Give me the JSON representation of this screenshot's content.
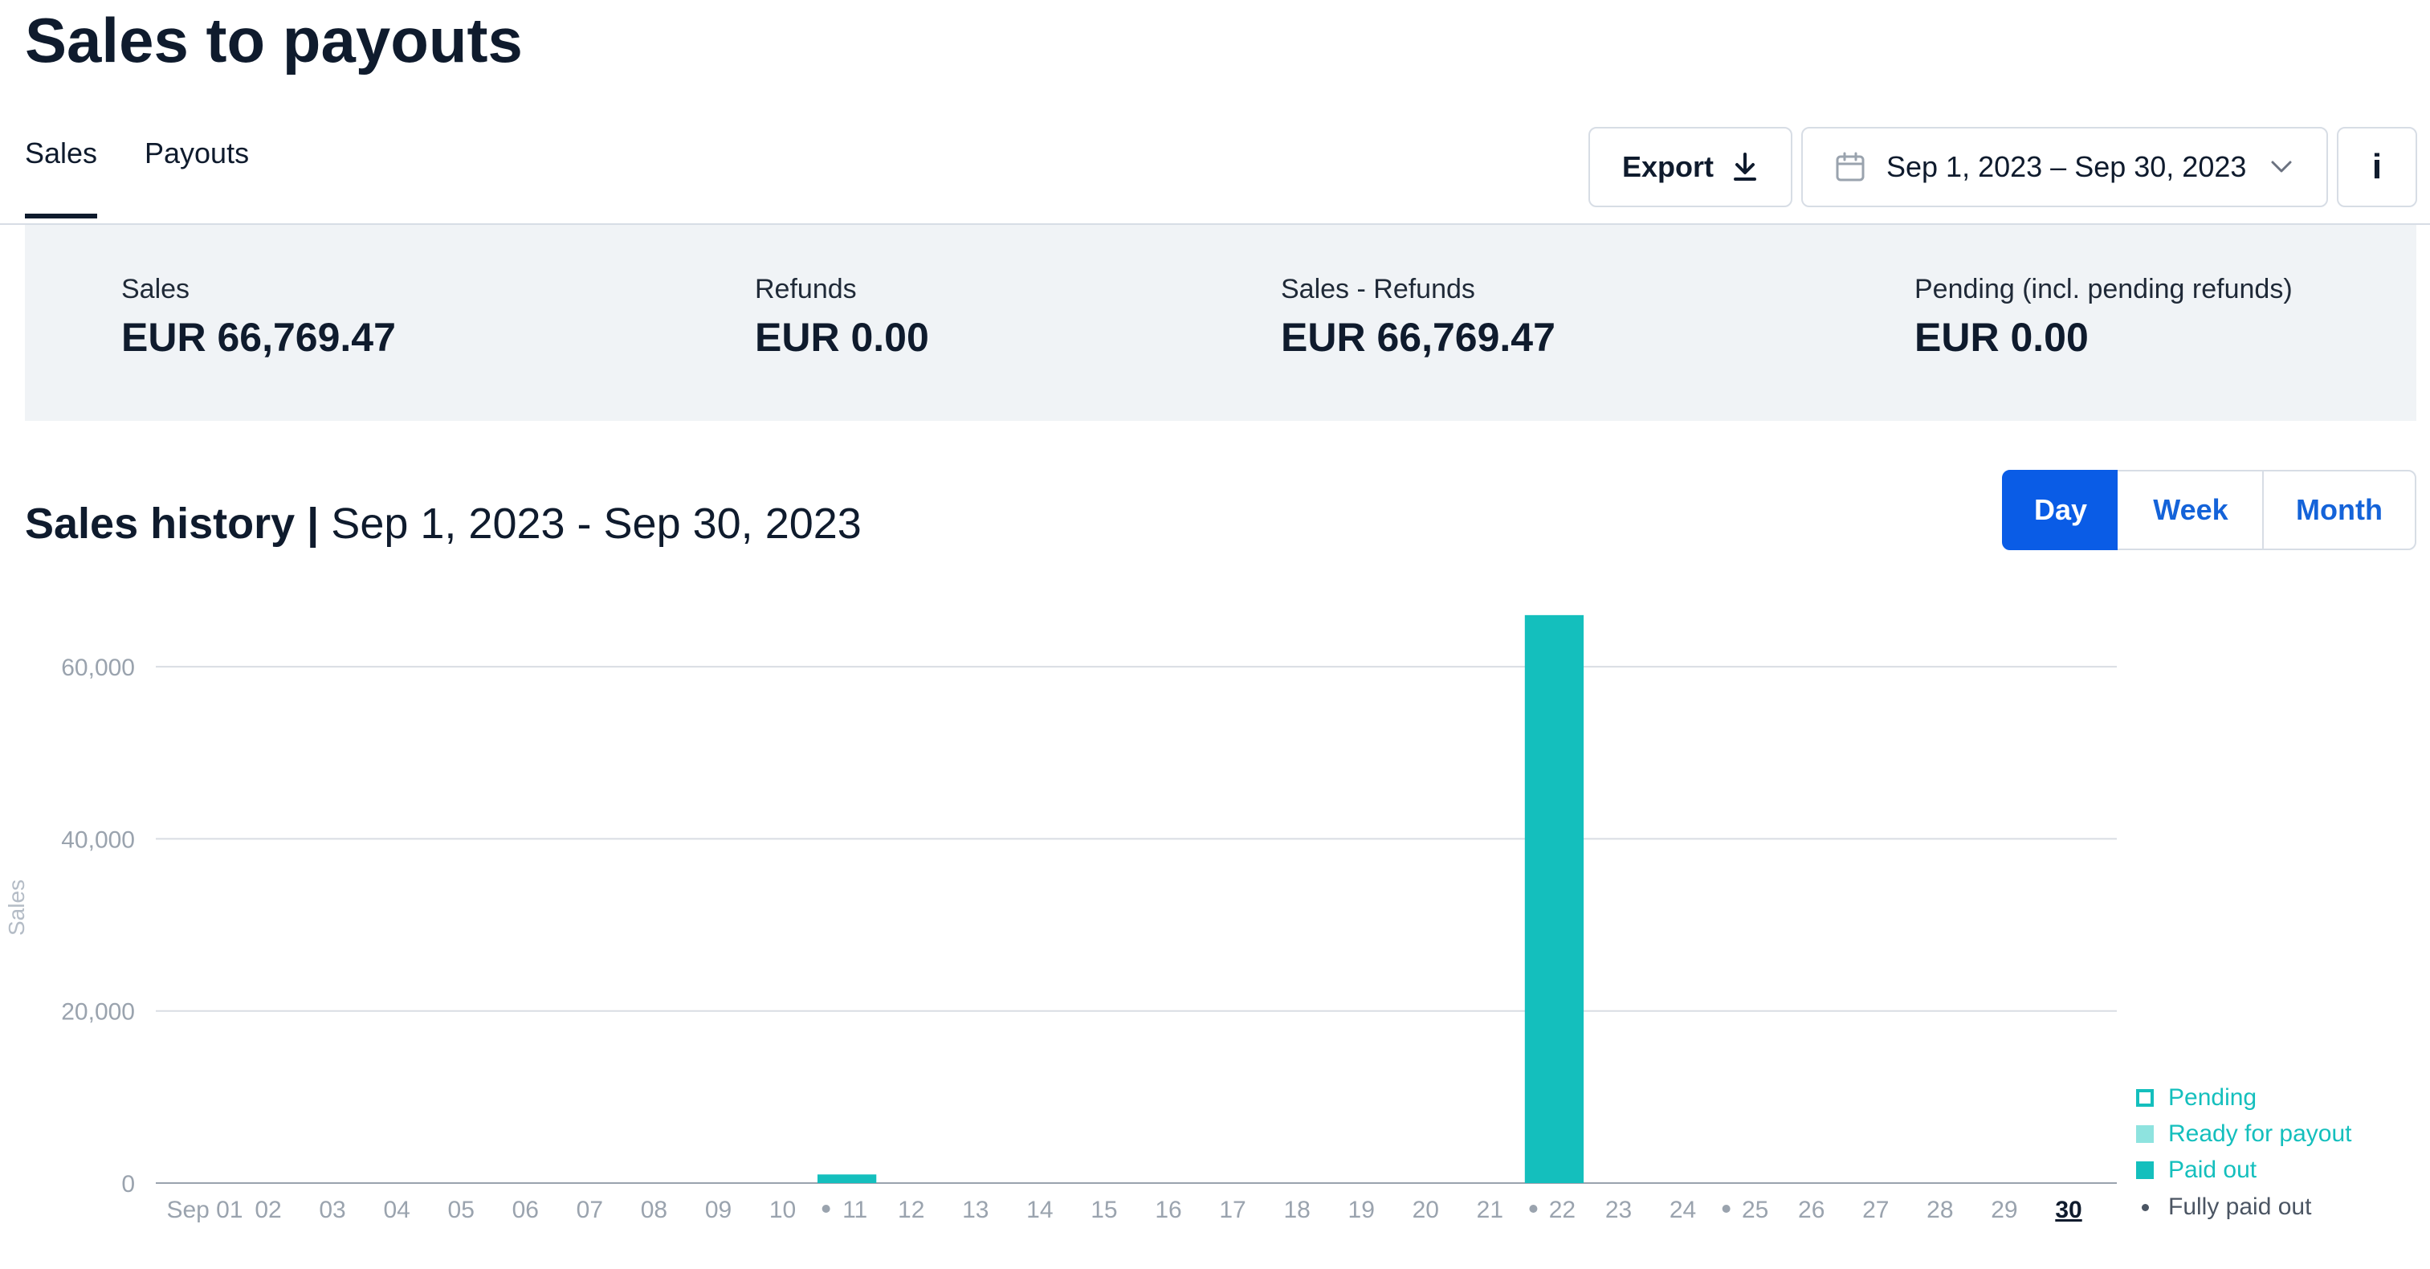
{
  "page": {
    "title": "Sales to payouts"
  },
  "tabs": [
    {
      "label": "Sales",
      "active": true
    },
    {
      "label": "Payouts",
      "active": false
    }
  ],
  "toolbar": {
    "export_label": "Export",
    "date_range": "Sep 1, 2023 – Sep 30, 2023",
    "info_label": "i"
  },
  "summary": [
    {
      "label": "Sales",
      "value": "EUR 66,769.47"
    },
    {
      "label": "Refunds",
      "value": "EUR 0.00"
    },
    {
      "label": "Sales - Refunds",
      "value": "EUR 66,769.47"
    },
    {
      "label": "Pending (incl. pending refunds)",
      "value": "EUR 0.00"
    }
  ],
  "history": {
    "title": "Sales history",
    "separator": "|",
    "range": "Sep 1, 2023 - Sep 30, 2023",
    "granularity": [
      {
        "label": "Day",
        "active": true
      },
      {
        "label": "Week",
        "active": false
      },
      {
        "label": "Month",
        "active": false
      }
    ]
  },
  "colors": {
    "accent": "#0a5ce6",
    "bar": "#14bfbd",
    "ready": "#8ee3df",
    "grid": "#d9dde3",
    "axis_text": "#9aa3ae"
  },
  "legend": [
    {
      "label": "Pending",
      "style": "outline"
    },
    {
      "label": "Ready for payout",
      "style": "light"
    },
    {
      "label": "Paid out",
      "style": "solid"
    },
    {
      "label": "Fully paid out",
      "style": "dot"
    }
  ],
  "chart_data": {
    "type": "bar",
    "ylabel": "Sales",
    "ylim": [
      0,
      70000
    ],
    "yticks": [
      0,
      20000,
      40000,
      60000
    ],
    "ytick_labels": [
      "0",
      "20,000",
      "40,000",
      "60,000"
    ],
    "categories": [
      "Sep 01",
      "02",
      "03",
      "04",
      "05",
      "06",
      "07",
      "08",
      "09",
      "10",
      "11",
      "12",
      "13",
      "14",
      "15",
      "16",
      "17",
      "18",
      "19",
      "20",
      "21",
      "22",
      "23",
      "24",
      "25",
      "26",
      "27",
      "28",
      "29",
      "30"
    ],
    "fully_paid_out_markers": [
      "11",
      "22",
      "25"
    ],
    "highlighted_category": "30",
    "series": [
      {
        "name": "Paid out",
        "values": [
          0,
          0,
          0,
          0,
          0,
          0,
          0,
          0,
          0,
          0,
          1000,
          0,
          0,
          0,
          0,
          0,
          0,
          0,
          0,
          0,
          0,
          66000,
          0,
          0,
          0,
          0,
          0,
          0,
          0,
          0
        ]
      }
    ],
    "grid": true,
    "legend_position": "bottom-right"
  }
}
